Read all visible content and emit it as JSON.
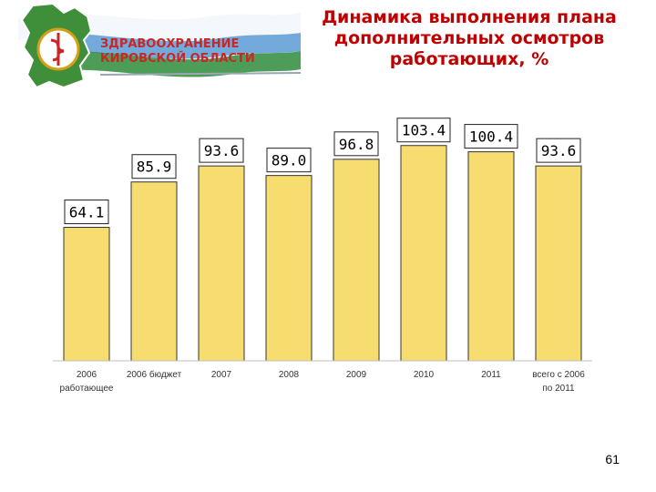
{
  "header": {
    "org_line1": "ЗДРАВООХРАНЕНИЕ",
    "org_line2": "КИРОВСКОЙ ОБЛАСТИ"
  },
  "title_lines": [
    "Динамика выполнения плана",
    "дополнительных осмотров",
    "работающих, %"
  ],
  "page_number": "61",
  "colors": {
    "bar_fill": "#f7dc6f",
    "bar_stroke": "#333333",
    "title": "#c00000",
    "ribbon_green": "#2e8b3a",
    "ribbon_blue": "#4a90c8",
    "brand_red": "#c62828"
  },
  "chart_data": {
    "type": "bar",
    "categories": [
      [
        "2006",
        "работающее"
      ],
      [
        "2006 бюджет"
      ],
      [
        "2007"
      ],
      [
        "2008"
      ],
      [
        "2009"
      ],
      [
        "2010"
      ],
      [
        "2011"
      ],
      [
        "всего с 2006",
        "по 2011"
      ]
    ],
    "values": [
      64.1,
      85.9,
      93.6,
      89.0,
      96.8,
      103.4,
      100.4,
      93.6
    ],
    "data_labels": [
      "64.1",
      "85.9",
      "93.6",
      "89.0",
      "96.8",
      "103.4",
      "100.4",
      "93.6"
    ],
    "title": "Динамика выполнения плана дополнительных осмотров работающих, %",
    "xlabel": "",
    "ylabel": "",
    "ylim": [
      0,
      110
    ],
    "grid": false,
    "legend": "none"
  }
}
